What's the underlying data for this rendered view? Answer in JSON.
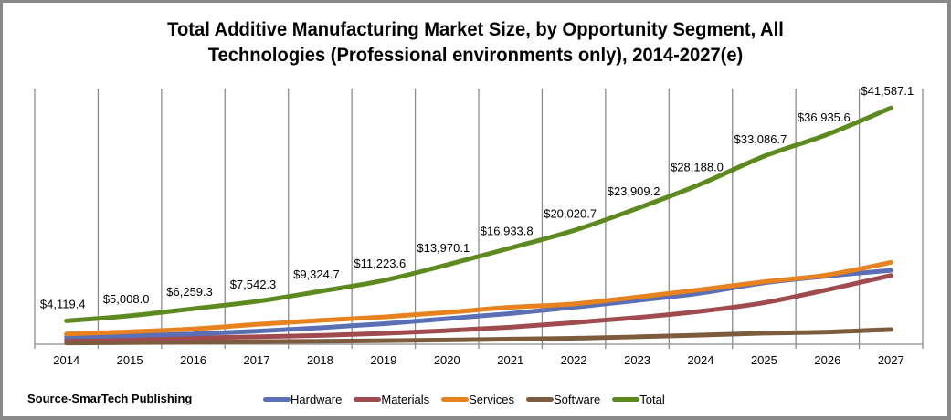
{
  "chart_data": {
    "type": "line",
    "title_lines": [
      "Total Additive Manufacturing Market Size, by Opportunity Segment, All",
      "Technologies (Professional environments only), 2014-2027(e)"
    ],
    "xlabel": "",
    "ylabel": "",
    "x": [
      "2014",
      "2015",
      "2016",
      "2017",
      "2018",
      "2019",
      "2020",
      "2021",
      "2022",
      "2023",
      "2024",
      "2025",
      "2026",
      "2027"
    ],
    "ylim": [
      0,
      45000
    ],
    "grid": "vertical",
    "legend_position": "bottom",
    "series": [
      {
        "name": "Hardware",
        "color": "#5b6fb5",
        "values": [
          1300,
          1500,
          1800,
          2300,
          2900,
          3600,
          4500,
          5400,
          6500,
          7700,
          9000,
          10800,
          12000,
          13000
        ]
      },
      {
        "name": "Materials",
        "color": "#a04b4e",
        "values": [
          800,
          950,
          1100,
          1300,
          1550,
          1900,
          2400,
          3000,
          3800,
          4700,
          5800,
          7300,
          9600,
          12100
        ]
      },
      {
        "name": "Services",
        "color": "#e8821e",
        "values": [
          1800,
          2200,
          2700,
          3500,
          4200,
          4800,
          5600,
          6500,
          7100,
          8300,
          9600,
          11000,
          12200,
          14400
        ]
      },
      {
        "name": "Software",
        "color": "#7d5c3e",
        "values": [
          220,
          300,
          380,
          450,
          520,
          620,
          750,
          900,
          1050,
          1300,
          1600,
          1950,
          2150,
          2600
        ]
      },
      {
        "name": "Total",
        "color": "#5d8a1e",
        "values": [
          4119.4,
          5008.0,
          6259.3,
          7542.3,
          9324.7,
          11223.6,
          13970.1,
          16933.8,
          20020.7,
          23909.2,
          28188.0,
          33086.7,
          36935.6,
          41587.1
        ],
        "data_labels": [
          "$4,119.4",
          "$5,008.0",
          "$6,259.3",
          "$7,542.3",
          "$9,324.7",
          "$11,223.6",
          "$13,970.1",
          "$16,933.8",
          "$20,020.7",
          "$23,909.2",
          "$28,188.0",
          "$33,086.7",
          "$36,935.6",
          "$41,587.1"
        ]
      }
    ],
    "source_note": "Source-SmarTech Publishing"
  }
}
